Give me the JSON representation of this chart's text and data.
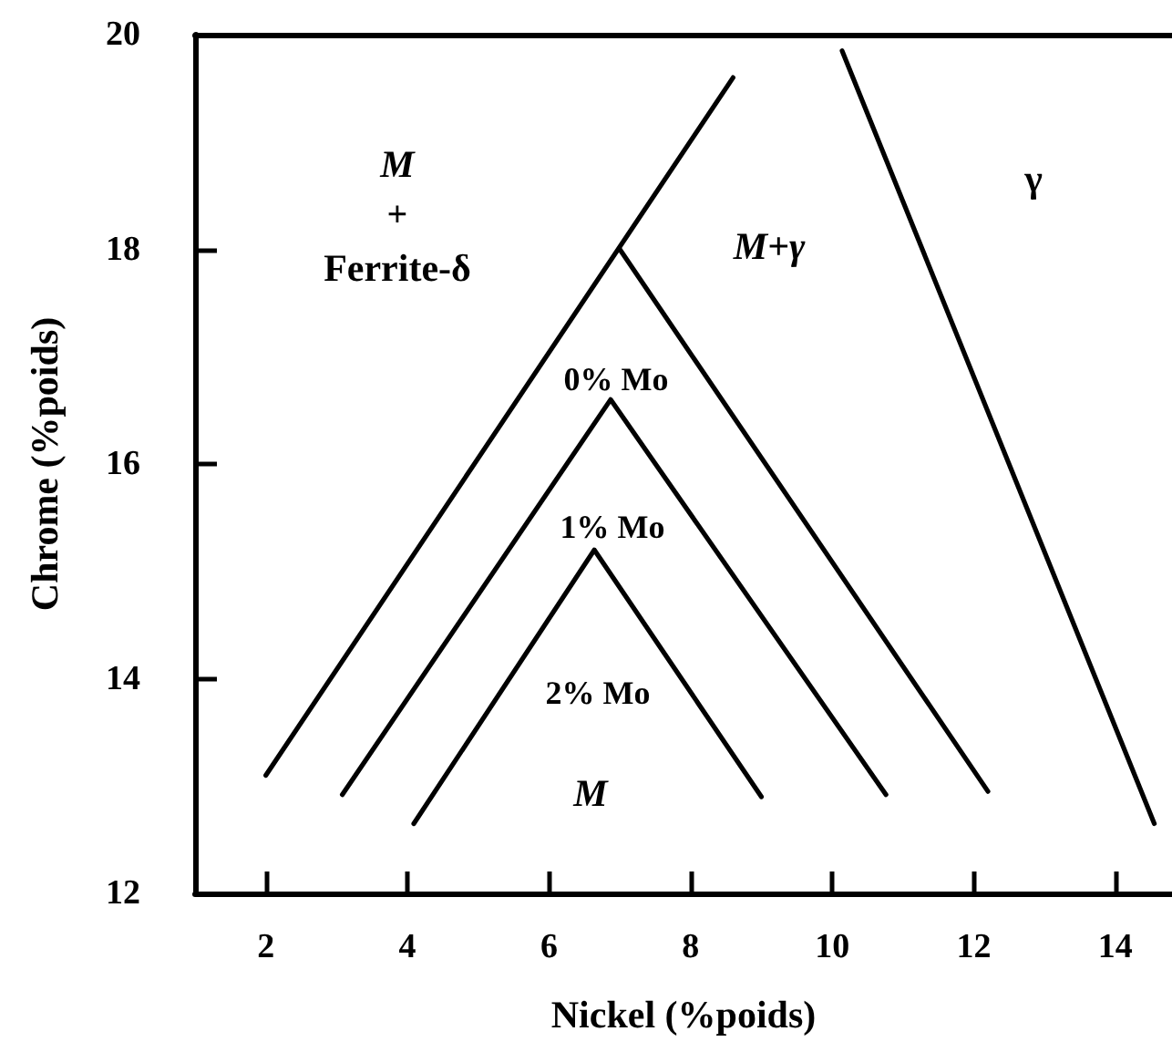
{
  "chart_data": {
    "type": "line",
    "xlabel": "Nickel (%poids)",
    "ylabel": "Chrome (%poids)",
    "xlim": [
      1,
      14.8
    ],
    "xticks": [
      2,
      4,
      6,
      8,
      10,
      12,
      14
    ],
    "ylim": [
      12,
      20
    ],
    "yticks": [
      12,
      14,
      16,
      18,
      20
    ],
    "grid": false,
    "marker": "none",
    "line_style": "solid",
    "series": [
      {
        "color": "#000000",
        "x": [
          2.0,
          8.6
        ],
        "values": [
          13.1,
          19.6
        ]
      },
      {
        "color": "#000000",
        "x": [
          7.0,
          12.2
        ],
        "values": [
          18.0,
          12.95
        ]
      },
      {
        "color": "#000000",
        "x": [
          3.08,
          6.87,
          10.76
        ],
        "values": [
          12.92,
          16.6,
          12.92
        ]
      },
      {
        "color": "#000000",
        "x": [
          4.09,
          6.64,
          9.0
        ],
        "values": [
          12.65,
          15.2,
          12.9
        ]
      },
      {
        "color": "#000000",
        "x": [
          10.14,
          14.55
        ],
        "values": [
          19.85,
          12.65
        ]
      }
    ],
    "annotations": [
      "M",
      "+",
      "Ferrite-δ",
      "M+γ",
      "γ",
      "0% Mo",
      "1% Mo",
      "2% Mo",
      "M"
    ]
  }
}
